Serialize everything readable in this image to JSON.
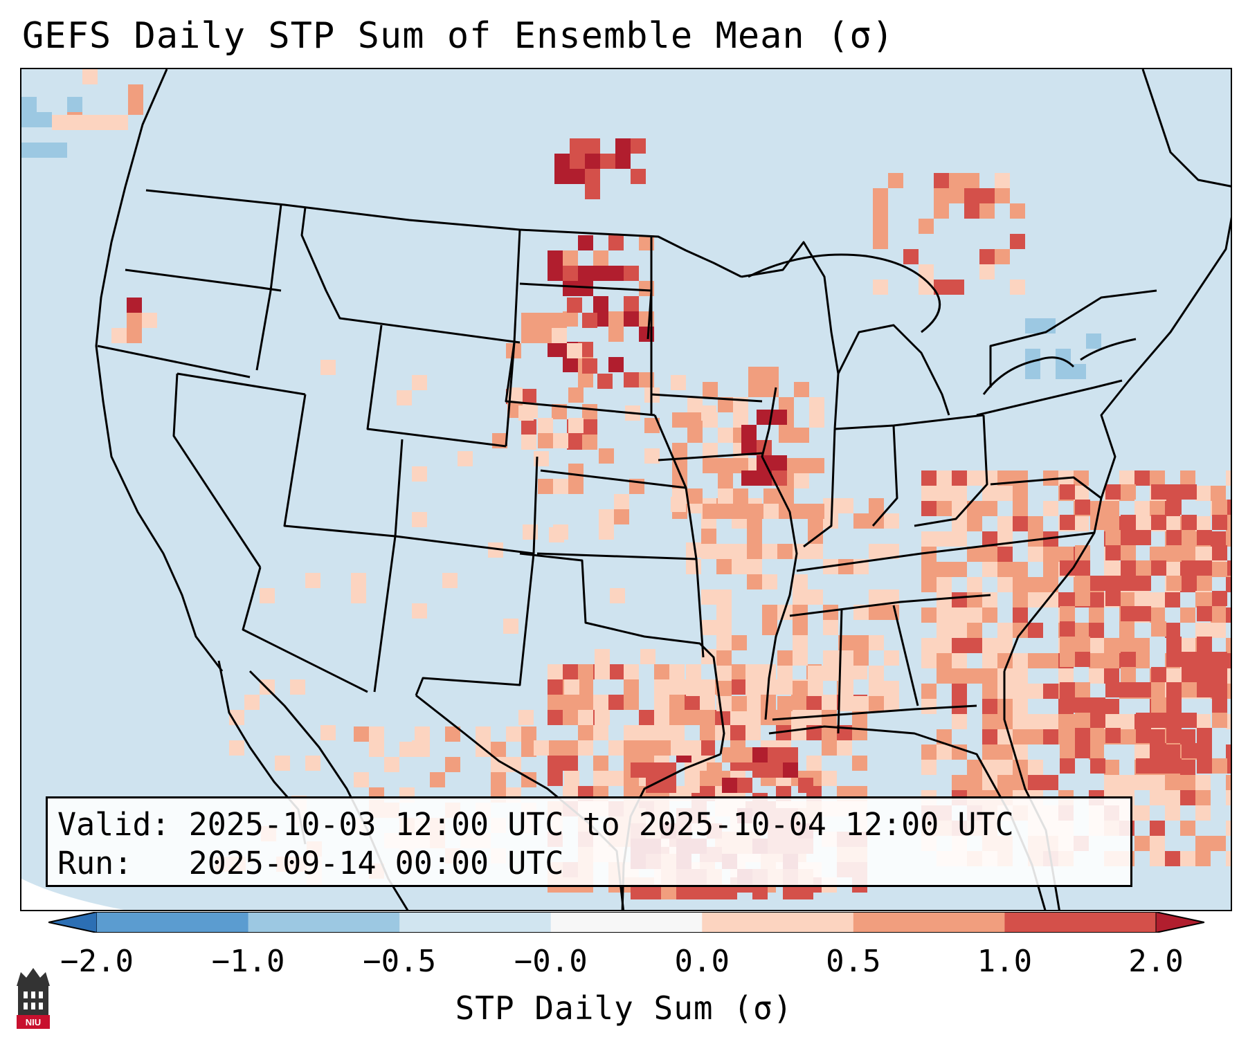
{
  "title": "GEFS Daily STP Sum of Ensemble Mean (σ)",
  "info": {
    "valid_line": "Valid: 2025-10-03 12:00 UTC to 2025-10-04 12:00 UTC",
    "run_line": "Run:   2025-09-14 00:00 UTC"
  },
  "colorbar": {
    "label": "STP Daily Sum (σ)",
    "ticks": [
      "−2.0",
      "−1.0",
      "−0.5",
      "−0.0",
      "0.0",
      "0.5",
      "1.0",
      "2.0"
    ],
    "colors": [
      "#2c6fb4",
      "#5b9cd0",
      "#9cc8e2",
      "#d1e5f0",
      "#f7f7f7",
      "#fcd4c0",
      "#f19e7e",
      "#d4504a",
      "#b11e2e"
    ],
    "extend": "both"
  },
  "logo": {
    "text": "NIU"
  },
  "map": {
    "background_color": "#cfe3ef",
    "land_edge": "#000000",
    "field": "STP daily sum anomaly (σ)",
    "hotspots": [
      "northern plains (Dakotas)",
      "upper Mississippi valley (Iowa/Illinois)",
      "southern Plains to Gulf coast",
      "Carolinas coast",
      "western Atlantic"
    ]
  }
}
